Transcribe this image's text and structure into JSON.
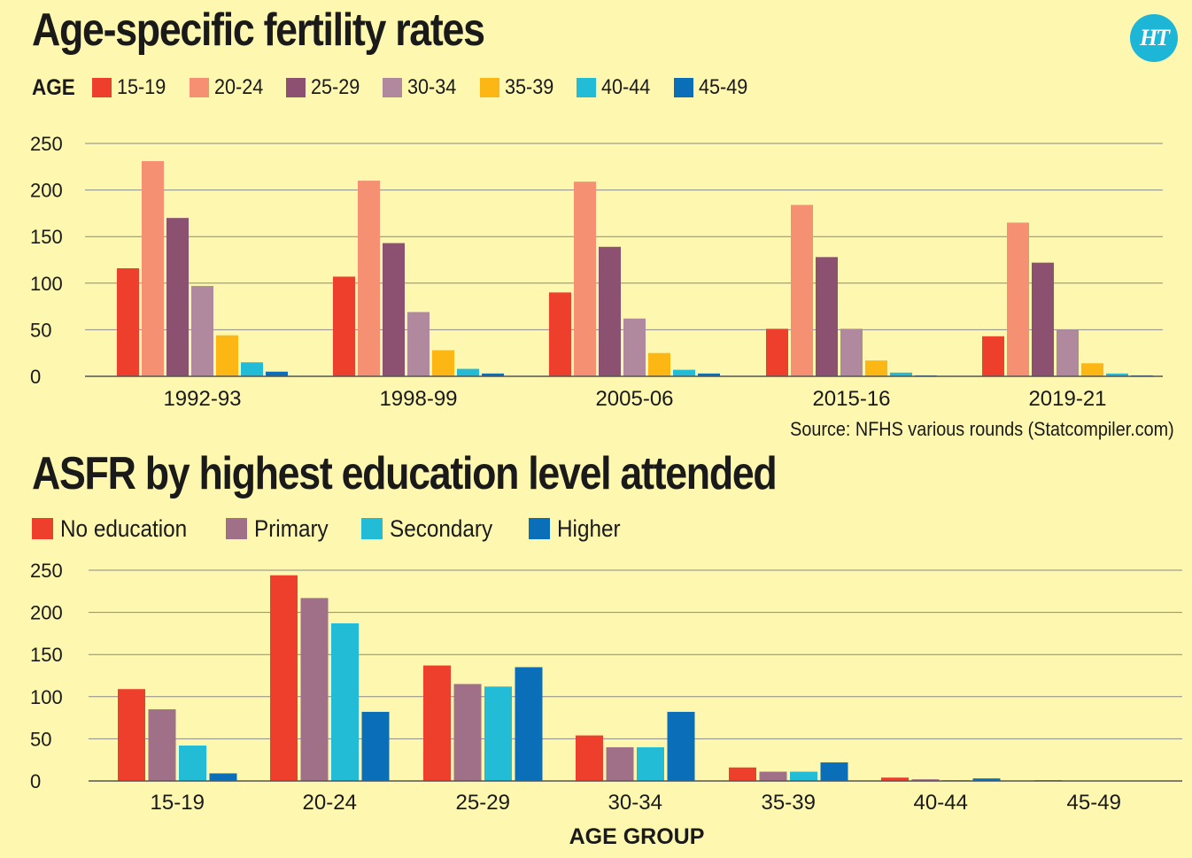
{
  "header": {
    "title1": "Age-specific fertility rates",
    "title2": "ASFR by highest education level attended",
    "logo_text": "HT",
    "source": "Source: NFHS various rounds (Statcompiler.com)",
    "legend1_title": "AGE"
  },
  "chart_data": [
    {
      "type": "bar",
      "title": "Age-specific fertility rates",
      "legend_title": "AGE",
      "legend_position": "top-left",
      "categories": [
        "1992-93",
        "1998-99",
        "2005-06",
        "2015-16",
        "2019-21"
      ],
      "ylim": [
        0,
        250
      ],
      "yticks": [
        0,
        50,
        100,
        150,
        200,
        250
      ],
      "grid": true,
      "series": [
        {
          "name": "15-19",
          "color": "#ee3f2d",
          "values": [
            116,
            107,
            90,
            51,
            43
          ]
        },
        {
          "name": "20-24",
          "color": "#f69072",
          "values": [
            231,
            210,
            209,
            184,
            165
          ]
        },
        {
          "name": "25-29",
          "color": "#8c5070",
          "values": [
            170,
            143,
            139,
            128,
            122
          ]
        },
        {
          "name": "30-34",
          "color": "#b0899e",
          "values": [
            97,
            69,
            62,
            51,
            50
          ]
        },
        {
          "name": "35-39",
          "color": "#fdb714",
          "values": [
            44,
            28,
            25,
            17,
            14
          ]
        },
        {
          "name": "40-44",
          "color": "#22bcd6",
          "values": [
            15,
            8,
            7,
            4,
            3
          ]
        },
        {
          "name": "45-49",
          "color": "#0a6fb8",
          "values": [
            5,
            3,
            3,
            1,
            1
          ]
        }
      ]
    },
    {
      "type": "bar",
      "title": "ASFR by highest education level attended",
      "xlabel": "AGE GROUP",
      "legend_position": "top-left",
      "categories": [
        "15-19",
        "20-24",
        "25-29",
        "30-34",
        "35-39",
        "40-44",
        "45-49"
      ],
      "ylim": [
        0,
        250
      ],
      "yticks": [
        0,
        50,
        100,
        150,
        200,
        250
      ],
      "grid": true,
      "series": [
        {
          "name": "No education",
          "color": "#ee3f2d",
          "values": [
            109,
            244,
            137,
            54,
            16,
            4,
            1
          ]
        },
        {
          "name": "Primary",
          "color": "#a07088",
          "values": [
            85,
            217,
            115,
            40,
            11,
            2,
            0
          ]
        },
        {
          "name": "Secondary",
          "color": "#22bcd6",
          "values": [
            42,
            187,
            112,
            40,
            11,
            1,
            0
          ]
        },
        {
          "name": "Higher",
          "color": "#0a6fb8",
          "values": [
            9,
            82,
            135,
            82,
            22,
            3,
            0
          ]
        }
      ]
    }
  ]
}
